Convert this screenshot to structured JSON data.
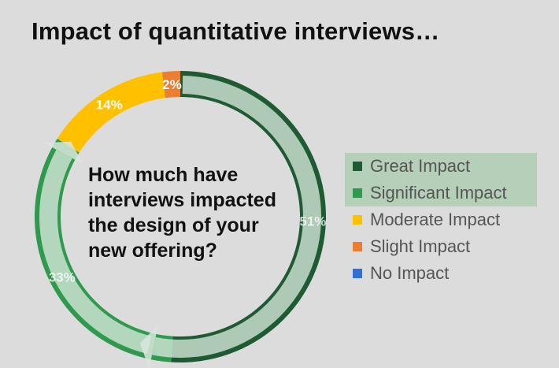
{
  "title": "Impact of quantitative interviews…",
  "question": "How much have interviews impacted the design of your new offering?",
  "legend": [
    {
      "label": "Great Impact",
      "color": "#1e5a32",
      "highlighted": true
    },
    {
      "label": "Significant Impact",
      "color": "#2f9a4e",
      "highlighted": true
    },
    {
      "label": "Moderate Impact",
      "color": "#ffc000",
      "highlighted": false
    },
    {
      "label": "Slight Impact",
      "color": "#ed7d31",
      "highlighted": false
    },
    {
      "label": "No Impact",
      "color": "#2f6fd6",
      "highlighted": false
    }
  ],
  "chart_data": {
    "type": "pie",
    "subtype": "donut",
    "title": "Impact of quantitative interviews…",
    "categories": [
      "Great Impact",
      "Significant Impact",
      "Moderate Impact",
      "Slight Impact",
      "No Impact"
    ],
    "values": [
      51,
      33,
      14,
      2,
      0
    ],
    "labels": [
      "51%",
      "33%",
      "14%",
      "2%",
      ""
    ],
    "colors": [
      "#1e5a32",
      "#2f9a4e",
      "#ffc000",
      "#ed7d31",
      "#2f6fd6"
    ],
    "legend_position": "right"
  }
}
